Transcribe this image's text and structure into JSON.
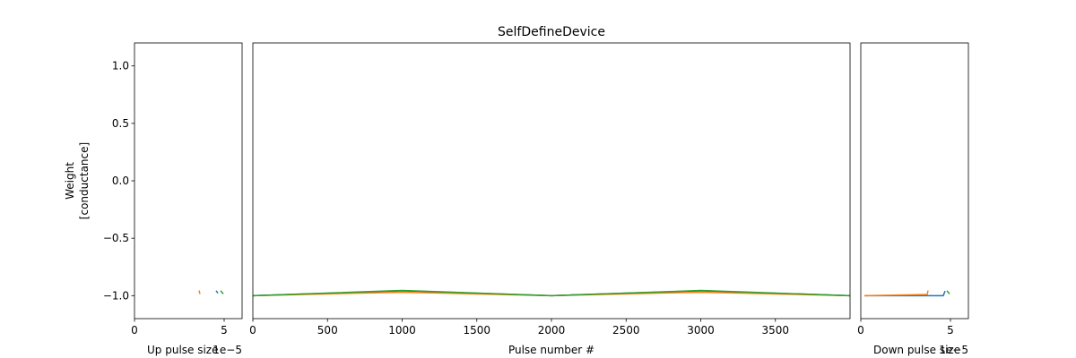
{
  "figure": {
    "title": "SelfDefineDevice"
  },
  "chart_data": [
    {
      "id": "up_pulse",
      "type": "line",
      "xlabel": "Up pulse size",
      "x_offset_text": "1e−5",
      "ylabel": "Weight\n[conductance]",
      "xlim": [
        0,
        6
      ],
      "ylim": [
        -1.2,
        1.2
      ],
      "xticks": [
        0,
        5
      ],
      "xtick_labels": [
        "0",
        "5"
      ],
      "yticks": [
        -1.0,
        -0.5,
        0.0,
        0.5,
        1.0
      ],
      "ytick_labels": [
        "−1.0",
        "−0.5",
        "0.0",
        "0.5",
        "1.0"
      ],
      "series": [
        {
          "color": "#1f77b4",
          "points": [
            [
              4.55,
              -0.957
            ],
            [
              4.65,
              -0.978
            ]
          ]
        },
        {
          "color": "#ff7f0e",
          "points": [
            [
              3.6,
              -0.955
            ],
            [
              3.65,
              -0.985
            ]
          ]
        },
        {
          "color": "#2ca02c",
          "points": [
            [
              4.8,
              -0.957
            ],
            [
              4.95,
              -0.985
            ]
          ]
        }
      ]
    },
    {
      "id": "pulse_trace",
      "type": "line",
      "title": "SelfDefineDevice",
      "xlabel": "Pulse number #",
      "xlim": [
        0,
        4000
      ],
      "ylim": [
        -1.2,
        1.2
      ],
      "xticks": [
        0,
        500,
        1000,
        1500,
        2000,
        2500,
        3000,
        3500
      ],
      "xtick_labels": [
        "0",
        "500",
        "1000",
        "1500",
        "2000",
        "2500",
        "3000",
        "3500"
      ],
      "series": [
        {
          "color": "#1f77b4",
          "points": [
            [
              0,
              -1.0
            ],
            [
              1000,
              -0.958
            ],
            [
              2000,
              -1.0
            ],
            [
              3000,
              -0.958
            ],
            [
              4000,
              -1.0
            ]
          ]
        },
        {
          "color": "#ff7f0e",
          "points": [
            [
              0,
              -1.0
            ],
            [
              1000,
              -0.97
            ],
            [
              2000,
              -1.0
            ],
            [
              3000,
              -0.97
            ],
            [
              4000,
              -1.0
            ]
          ]
        },
        {
          "color": "#2ca02c",
          "points": [
            [
              0,
              -1.0
            ],
            [
              1000,
              -0.955
            ],
            [
              2000,
              -1.0
            ],
            [
              3000,
              -0.955
            ],
            [
              4000,
              -1.0
            ]
          ]
        }
      ]
    },
    {
      "id": "down_pulse",
      "type": "line",
      "xlabel": "Down pulse size",
      "x_offset_text": "1e−5",
      "xlim": [
        0,
        6
      ],
      "ylim": [
        -1.2,
        1.2
      ],
      "xticks": [
        0,
        5
      ],
      "xtick_labels": [
        "0",
        "5"
      ],
      "series": [
        {
          "color": "#1f77b4",
          "points": [
            [
              0.2,
              -1.0
            ],
            [
              4.6,
              -1.0
            ],
            [
              4.7,
              -0.96
            ]
          ]
        },
        {
          "color": "#ff7f0e",
          "points": [
            [
              0.2,
              -1.0
            ],
            [
              3.7,
              -0.99
            ],
            [
              3.75,
              -0.955
            ]
          ]
        },
        {
          "color": "#2ca02c",
          "points": [
            [
              4.8,
              -0.957
            ],
            [
              4.95,
              -0.985
            ]
          ]
        }
      ]
    }
  ]
}
